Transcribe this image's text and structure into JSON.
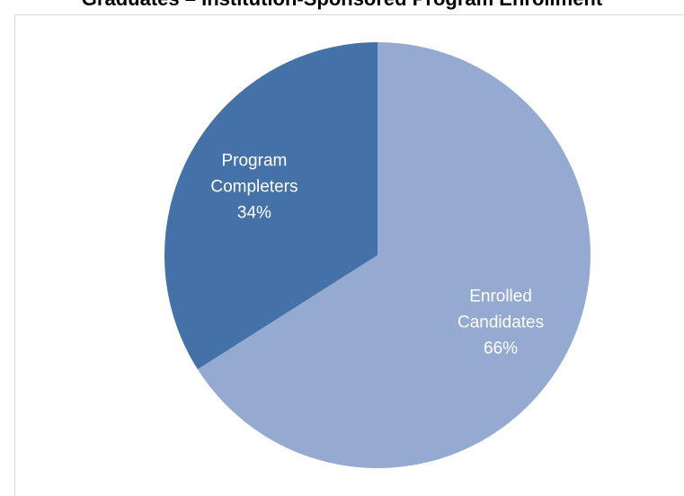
{
  "chart_data": {
    "type": "pie",
    "title": "Graduates – Institution-Sponsored Program Enrollment",
    "slices": [
      {
        "label_lines": [
          "Enrolled",
          "Candidates"
        ],
        "percent_label": "66%",
        "value": 66,
        "color": "#95aad0"
      },
      {
        "label_lines": [
          "Program",
          "Completers"
        ],
        "percent_label": "34%",
        "value": 34,
        "color": "#4472a8"
      }
    ],
    "start_angle_deg": 0,
    "direction": "clockwise",
    "legend": "none"
  }
}
